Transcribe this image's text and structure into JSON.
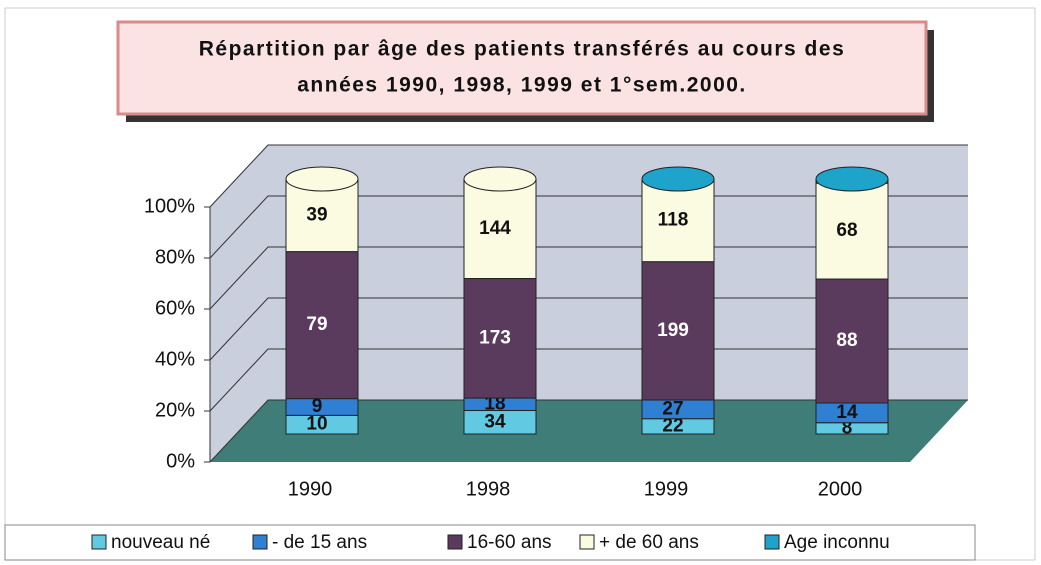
{
  "chart_data": {
    "type": "bar",
    "stack": "percent",
    "title": "Répartition par âge des patients transférés au cours des",
    "subtitle": "années 1990, 1998, 1999 et 1°sem.2000.",
    "categories": [
      "1990",
      "1998",
      "1999",
      "2000"
    ],
    "series": [
      {
        "name": "nouveau né",
        "color": "#62c9e3",
        "values": [
          10,
          34,
          22,
          8
        ]
      },
      {
        "name": "- de 15 ans",
        "color": "#2f7fd3",
        "values": [
          9,
          18,
          27,
          14
        ]
      },
      {
        "name": "16-60 ans",
        "color": "#5a3b5e",
        "values": [
          79,
          173,
          199,
          88
        ]
      },
      {
        "name": "+ de 60 ans",
        "color": "#fbfbe2",
        "values": [
          39,
          144,
          118,
          68
        ]
      },
      {
        "name": "Age inconnu",
        "color": "#1ea4cb",
        "values": [
          null,
          null,
          1,
          3
        ]
      }
    ],
    "ylim": [
      0,
      100
    ],
    "yticks": [
      {
        "value": 0,
        "label": "0%"
      },
      {
        "value": 20,
        "label": "20%"
      },
      {
        "value": 40,
        "label": "40%"
      },
      {
        "value": 60,
        "label": "60%"
      },
      {
        "value": 80,
        "label": "80%"
      },
      {
        "value": 100,
        "label": "100%"
      }
    ],
    "grid": true,
    "legend": "bottom"
  }
}
